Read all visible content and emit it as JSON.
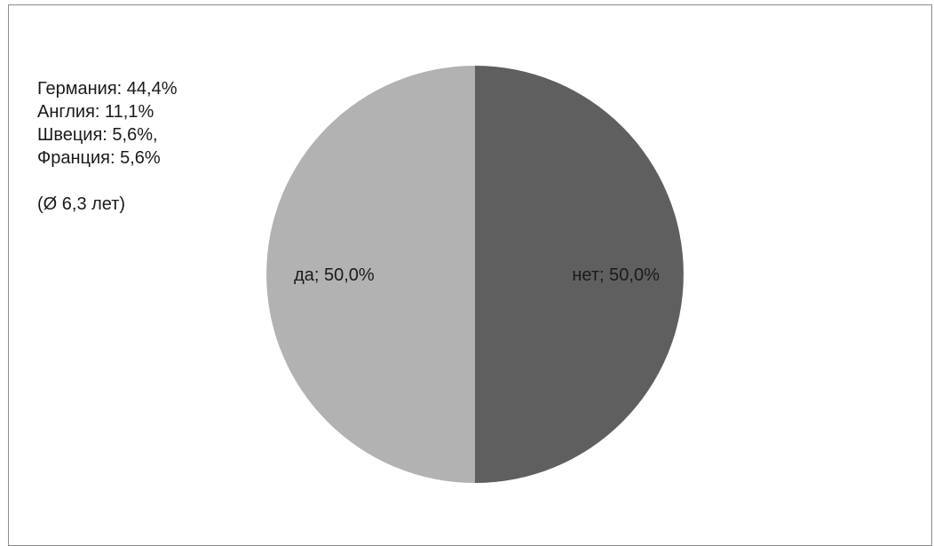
{
  "annotation": {
    "lines": [
      "Германия: 44,4%",
      "Англия: 11,1%",
      "Швеция: 5,6%,",
      "Франция: 5,6%"
    ],
    "average": "(Ø 6,3 лет)"
  },
  "chart_data": {
    "type": "pie",
    "title": "",
    "categories": [
      "нет",
      "да"
    ],
    "values": [
      50.0,
      50.0
    ],
    "labels": [
      "нет; 50,0%",
      "да; 50,0%"
    ],
    "colors": [
      "#5f5f5f",
      "#b2b2b2"
    ],
    "start": "top",
    "direction": "clockwise",
    "legend": "none"
  }
}
